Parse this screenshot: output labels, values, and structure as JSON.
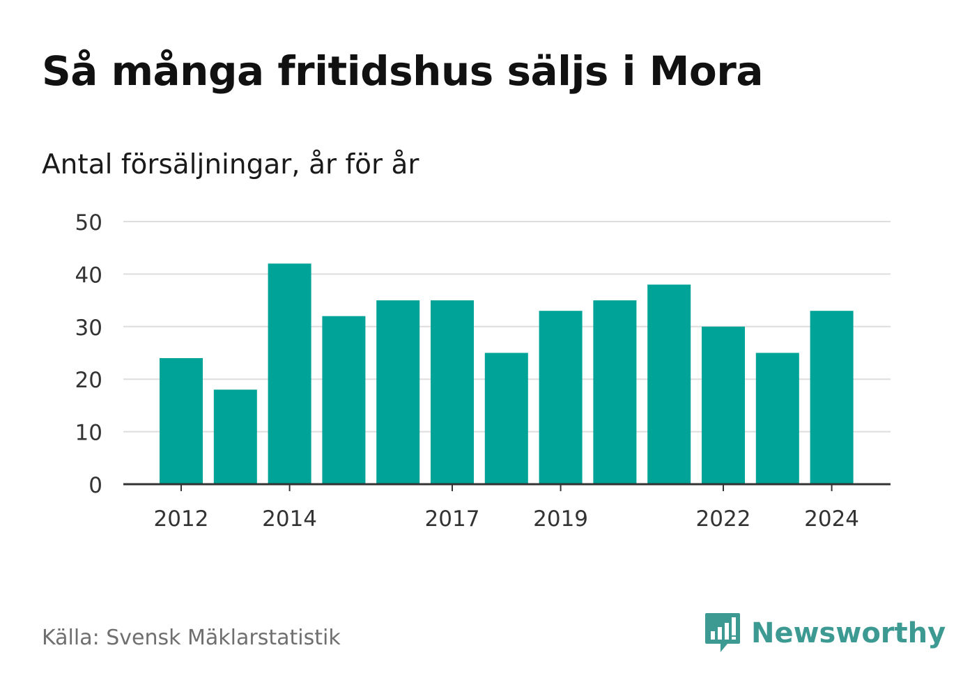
{
  "title": "Så många fritidshus säljs i Mora",
  "subtitle": "Antal försäljningar, år för år",
  "source": "Källa: Svensk Mäklarstatistik",
  "brand": {
    "name": "Newsworthy",
    "icon": "bar-chart-speech-bubble-icon"
  },
  "colors": {
    "bar": "#00a398",
    "grid": "#dddddd",
    "axis": "#333333",
    "brand": "#3d9a93"
  },
  "chart_data": {
    "type": "bar",
    "title": "Så många fritidshus säljs i Mora",
    "subtitle": "Antal försäljningar, år för år",
    "categories": [
      "2012",
      "2013",
      "2014",
      "2015",
      "2016",
      "2017",
      "2018",
      "2019",
      "2020",
      "2021",
      "2022",
      "2023",
      "2024"
    ],
    "values": [
      24,
      18,
      42,
      32,
      35,
      35,
      25,
      33,
      35,
      38,
      30,
      25,
      33
    ],
    "x_tick_labels": [
      "2012",
      "2014",
      "2017",
      "2019",
      "2022",
      "2024"
    ],
    "y_ticks": [
      0,
      10,
      20,
      30,
      40,
      50
    ],
    "ylim": [
      0,
      50
    ],
    "grid": true,
    "legend": "none"
  }
}
